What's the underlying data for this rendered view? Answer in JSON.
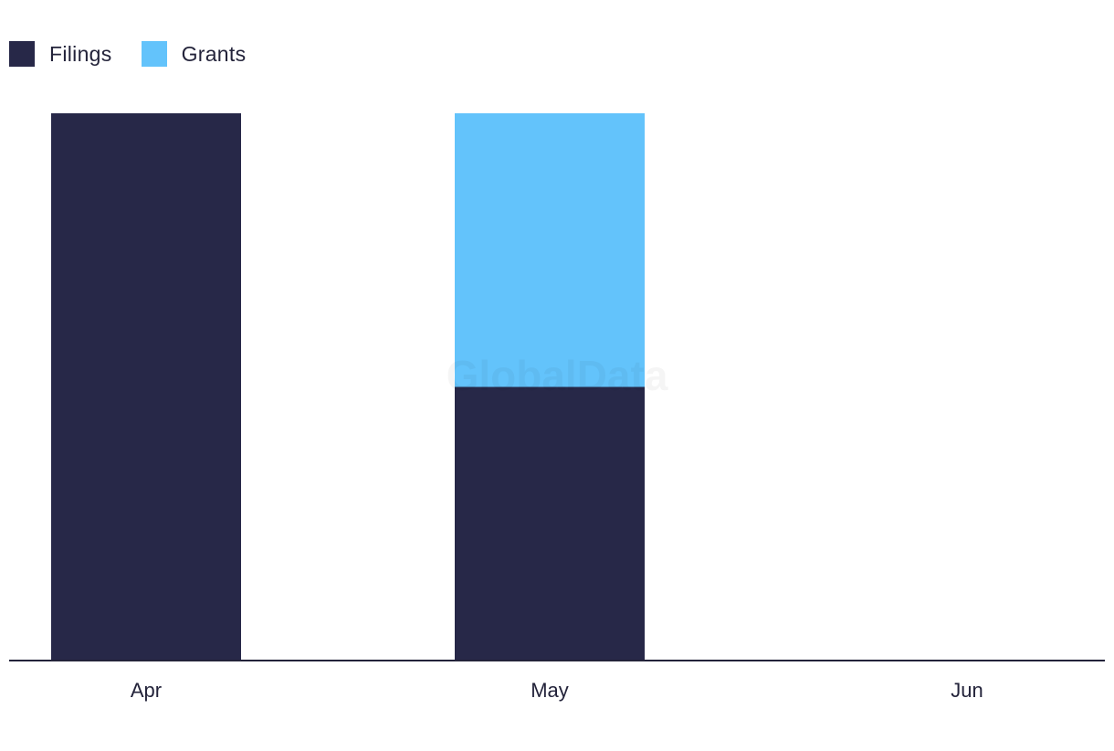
{
  "legend": {
    "items": [
      {
        "label": "Filings",
        "color": "#272848"
      },
      {
        "label": "Grants",
        "color": "#63c3fb"
      }
    ]
  },
  "watermark": "GlobalData",
  "chart_data": {
    "type": "bar",
    "stacked": true,
    "categories": [
      "Apr",
      "May",
      "Jun"
    ],
    "series": [
      {
        "name": "Filings",
        "values": [
          2,
          1,
          0
        ],
        "color": "#272848"
      },
      {
        "name": "Grants",
        "values": [
          0,
          1,
          0
        ],
        "color": "#63c3fb"
      }
    ],
    "ylim": [
      0,
      2
    ],
    "legend_position": "top-left",
    "grid": false,
    "title": "",
    "xlabel": "",
    "ylabel": ""
  }
}
